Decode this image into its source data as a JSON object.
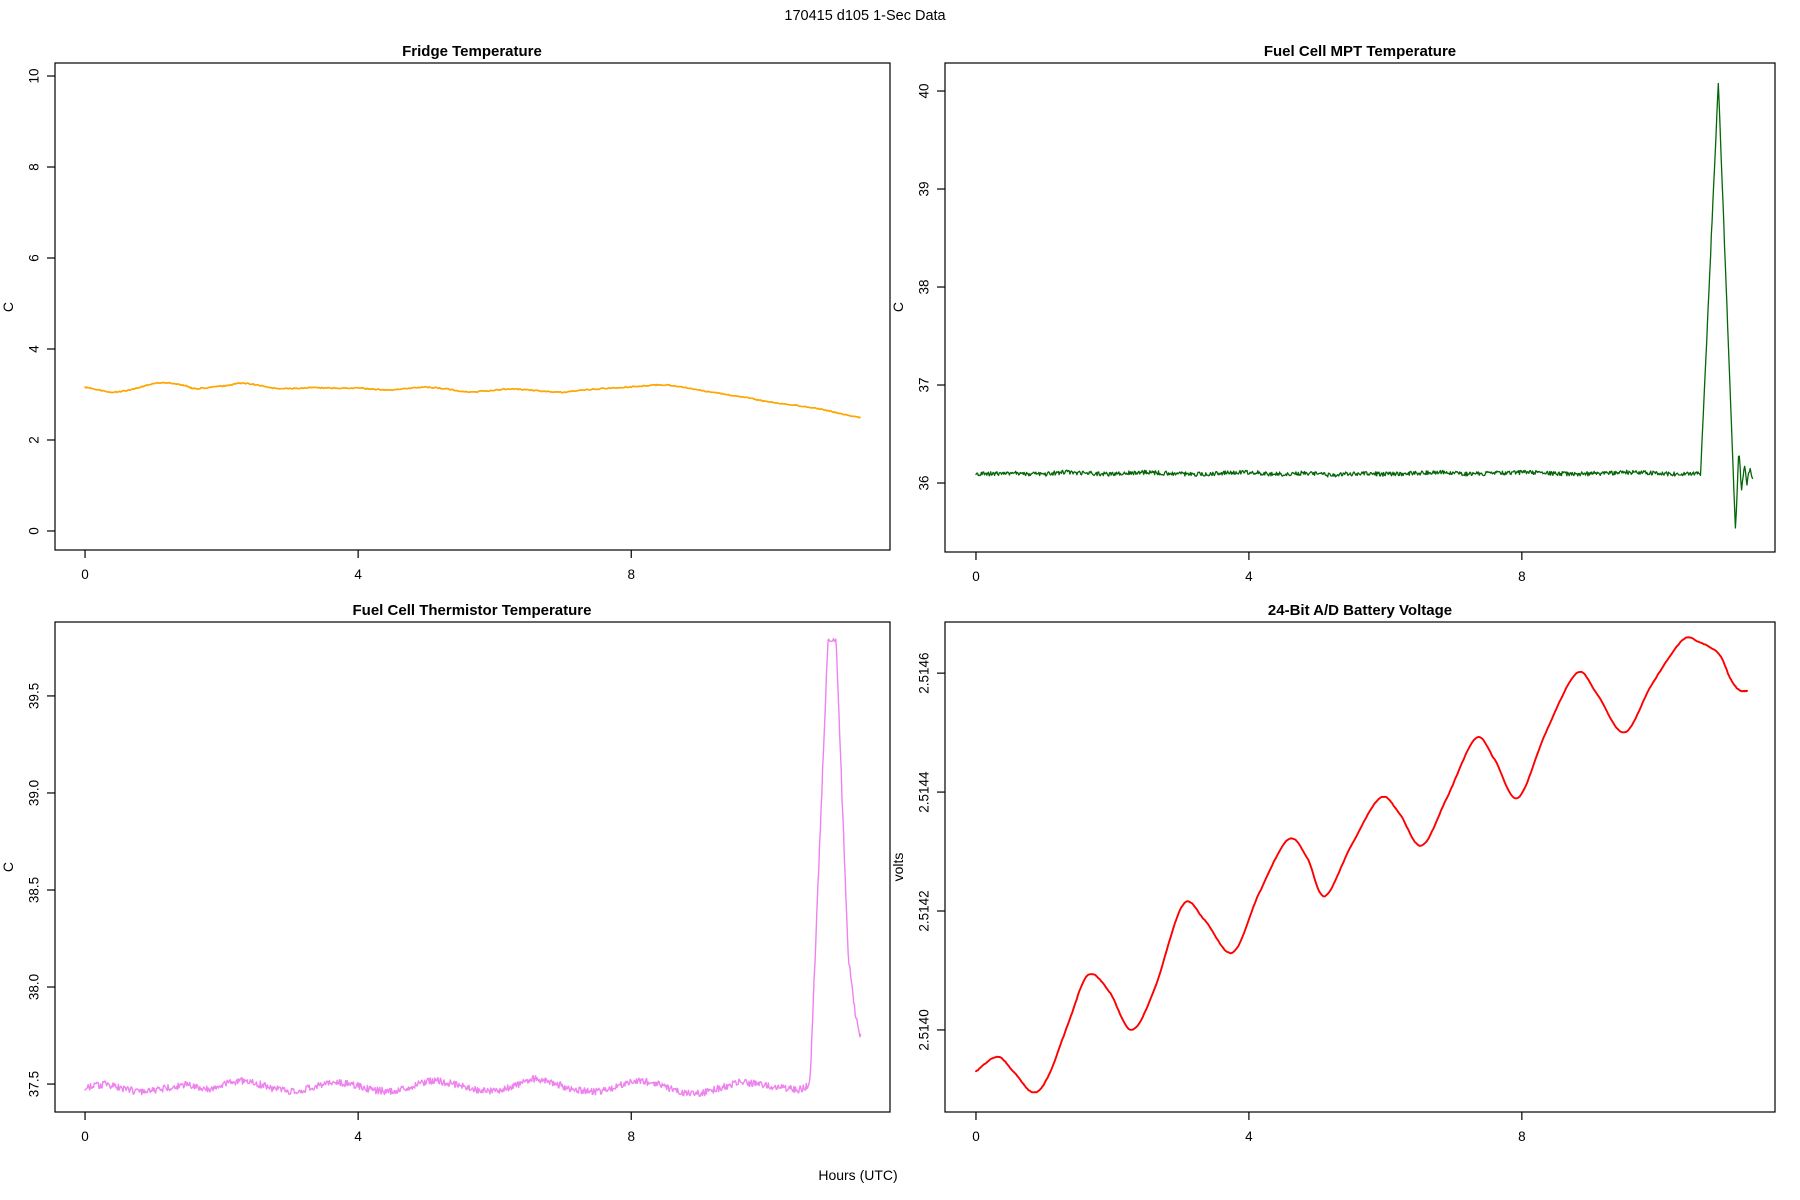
{
  "main_title": "170415   d105   1-Sec Data",
  "xlabel": "Hours (UTC)",
  "chart_data": [
    {
      "id": "fridge-temperature",
      "type": "line",
      "title": "Fridge Temperature",
      "ylabel": "C",
      "color": "#FFA500",
      "xlim": [
        -0.44,
        11.79
      ],
      "ylim": [
        -0.418,
        10.286
      ],
      "xticks": [
        {
          "v": 0,
          "label": "0"
        },
        {
          "v": 4,
          "label": "4"
        },
        {
          "v": 8,
          "label": "8"
        }
      ],
      "yticks": [
        {
          "v": 0,
          "label": "0"
        },
        {
          "v": 2,
          "label": "2"
        },
        {
          "v": 4,
          "label": "4"
        },
        {
          "v": 6,
          "label": "6"
        },
        {
          "v": 8,
          "label": "8"
        },
        {
          "v": 10,
          "label": "10"
        }
      ],
      "interpolation": "smooth",
      "noise_amplitude": 0.012,
      "points": [
        [
          0,
          3.16
        ],
        [
          0.2,
          3.1
        ],
        [
          0.4,
          3.05
        ],
        [
          0.65,
          3.1
        ],
        [
          0.9,
          3.2
        ],
        [
          1.15,
          3.26
        ],
        [
          1.45,
          3.2
        ],
        [
          1.6,
          3.13
        ],
        [
          1.85,
          3.16
        ],
        [
          2.1,
          3.2
        ],
        [
          2.3,
          3.25
        ],
        [
          2.55,
          3.2
        ],
        [
          2.75,
          3.14
        ],
        [
          3.0,
          3.13
        ],
        [
          3.3,
          3.15
        ],
        [
          3.6,
          3.14
        ],
        [
          3.95,
          3.14
        ],
        [
          4.2,
          3.12
        ],
        [
          4.45,
          3.1
        ],
        [
          4.7,
          3.13
        ],
        [
          5.0,
          3.16
        ],
        [
          5.3,
          3.12
        ],
        [
          5.6,
          3.06
        ],
        [
          5.9,
          3.08
        ],
        [
          6.2,
          3.12
        ],
        [
          6.5,
          3.1
        ],
        [
          6.8,
          3.06
        ],
        [
          7.0,
          3.05
        ],
        [
          7.3,
          3.1
        ],
        [
          7.7,
          3.14
        ],
        [
          8.0,
          3.17
        ],
        [
          8.3,
          3.2
        ],
        [
          8.5,
          3.21
        ],
        [
          8.8,
          3.15
        ],
        [
          9.1,
          3.07
        ],
        [
          9.4,
          3.0
        ],
        [
          9.7,
          2.93
        ],
        [
          9.9,
          2.87
        ],
        [
          10.2,
          2.8
        ],
        [
          10.6,
          2.72
        ],
        [
          10.9,
          2.64
        ],
        [
          11.1,
          2.57
        ],
        [
          11.35,
          2.49
        ]
      ]
    },
    {
      "id": "fuel-cell-mpt-temperature",
      "type": "line",
      "title": "Fuel Cell MPT Temperature",
      "ylabel": "C",
      "color": "#056608",
      "xlim": [
        -0.454,
        11.71
      ],
      "ylim": [
        35.296,
        40.286
      ],
      "xticks": [
        {
          "v": 0,
          "label": "0"
        },
        {
          "v": 4,
          "label": "4"
        },
        {
          "v": 8,
          "label": "8"
        }
      ],
      "yticks": [
        {
          "v": 36,
          "label": "36"
        },
        {
          "v": 37,
          "label": "37"
        },
        {
          "v": 38,
          "label": "38"
        },
        {
          "v": 39,
          "label": "39"
        },
        {
          "v": 40,
          "label": "40"
        }
      ],
      "interpolation": "linear",
      "noise_amplitude": 0.022,
      "points": [
        [
          0,
          36.09
        ],
        [
          0.5,
          36.1
        ],
        [
          1,
          36.09
        ],
        [
          1.3,
          36.11
        ],
        [
          1.6,
          36.1
        ],
        [
          2,
          36.09
        ],
        [
          2.4,
          36.11
        ],
        [
          2.8,
          36.1
        ],
        [
          3.2,
          36.09
        ],
        [
          3.6,
          36.1
        ],
        [
          4,
          36.11
        ],
        [
          4.4,
          36.09
        ],
        [
          4.8,
          36.1
        ],
        [
          5.2,
          36.08
        ],
        [
          5.6,
          36.1
        ],
        [
          6,
          36.09
        ],
        [
          6.4,
          36.1
        ],
        [
          6.8,
          36.11
        ],
        [
          7.2,
          36.09
        ],
        [
          7.6,
          36.1
        ],
        [
          8,
          36.11
        ],
        [
          8.4,
          36.1
        ],
        [
          8.8,
          36.09
        ],
        [
          9.2,
          36.1
        ],
        [
          9.6,
          36.11
        ],
        [
          10,
          36.1
        ],
        [
          10.3,
          36.09
        ],
        [
          10.55,
          36.1
        ],
        [
          10.62,
          36.1
        ],
        [
          10.88,
          40.09
        ],
        [
          11.13,
          35.52
        ],
        [
          11.18,
          36.34
        ],
        [
          11.22,
          35.93
        ],
        [
          11.26,
          36.18
        ],
        [
          11.3,
          36.0
        ],
        [
          11.34,
          36.14
        ],
        [
          11.38,
          36.05
        ]
      ]
    },
    {
      "id": "fuel-cell-thermistor-temperature",
      "type": "line",
      "title": "Fuel Cell Thermistor Temperature",
      "ylabel": "C",
      "color": "#EE82EE",
      "xlim": [
        -0.44,
        11.79
      ],
      "ylim": [
        37.356,
        39.881
      ],
      "xticks": [
        {
          "v": 0,
          "label": "0"
        },
        {
          "v": 4,
          "label": "4"
        },
        {
          "v": 8,
          "label": "8"
        }
      ],
      "yticks": [
        {
          "v": 37.5,
          "label": "37.5"
        },
        {
          "v": 38.0,
          "label": "38.0"
        },
        {
          "v": 38.5,
          "label": "38.5"
        },
        {
          "v": 39.0,
          "label": "39.0"
        },
        {
          "v": 39.5,
          "label": "39.5"
        }
      ],
      "interpolation": "linear",
      "noise_amplitude": 0.018,
      "points": [
        [
          0,
          37.48
        ],
        [
          0.3,
          37.5
        ],
        [
          0.6,
          37.47
        ],
        [
          0.9,
          37.46
        ],
        [
          1.2,
          37.48
        ],
        [
          1.5,
          37.5
        ],
        [
          1.8,
          37.47
        ],
        [
          2.1,
          37.51
        ],
        [
          2.4,
          37.52
        ],
        [
          2.7,
          37.48
        ],
        [
          3.0,
          37.46
        ],
        [
          3.3,
          37.48
        ],
        [
          3.6,
          37.51
        ],
        [
          3.9,
          37.5
        ],
        [
          4.2,
          37.47
        ],
        [
          4.5,
          37.46
        ],
        [
          4.8,
          37.49
        ],
        [
          5.1,
          37.52
        ],
        [
          5.4,
          37.5
        ],
        [
          5.7,
          37.47
        ],
        [
          6.0,
          37.46
        ],
        [
          6.3,
          37.49
        ],
        [
          6.6,
          37.53
        ],
        [
          6.9,
          37.5
        ],
        [
          7.2,
          37.47
        ],
        [
          7.5,
          37.46
        ],
        [
          7.8,
          37.49
        ],
        [
          8.1,
          37.52
        ],
        [
          8.4,
          37.5
        ],
        [
          8.7,
          37.46
        ],
        [
          9.0,
          37.45
        ],
        [
          9.3,
          37.48
        ],
        [
          9.6,
          37.51
        ],
        [
          9.9,
          37.5
        ],
        [
          10.2,
          37.48
        ],
        [
          10.45,
          37.47
        ],
        [
          10.58,
          37.49
        ],
        [
          10.62,
          37.52
        ],
        [
          10.88,
          39.78
        ],
        [
          11.0,
          39.79
        ],
        [
          11.17,
          38.22
        ],
        [
          11.19,
          38.12
        ],
        [
          11.22,
          38.05
        ],
        [
          11.28,
          37.86
        ],
        [
          11.36,
          37.74
        ]
      ]
    },
    {
      "id": "battery-voltage",
      "type": "line",
      "title": "24-Bit A/D Battery Voltage",
      "ylabel": "volts",
      "color": "#FF0000",
      "xlim": [
        -0.454,
        11.71
      ],
      "ylim": [
        2.513862,
        2.514686
      ],
      "xticks": [
        {
          "v": 0,
          "label": "0"
        },
        {
          "v": 4,
          "label": "4"
        },
        {
          "v": 8,
          "label": "8"
        }
      ],
      "yticks": [
        {
          "v": 2.514,
          "label": "2.5140"
        },
        {
          "v": 2.5142,
          "label": "2.5142"
        },
        {
          "v": 2.5144,
          "label": "2.5144"
        },
        {
          "v": 2.5146,
          "label": "2.5146"
        }
      ],
      "interpolation": "smooth",
      "noise_amplitude": 6e-07,
      "points": [
        [
          0,
          2.51393
        ],
        [
          0.31,
          2.513955
        ],
        [
          0.55,
          2.51393
        ],
        [
          0.83,
          2.513895
        ],
        [
          1.05,
          2.51392
        ],
        [
          1.35,
          2.51401
        ],
        [
          1.64,
          2.514092
        ],
        [
          1.95,
          2.514065
        ],
        [
          2.28,
          2.514
        ],
        [
          2.62,
          2.51407
        ],
        [
          3.03,
          2.51421
        ],
        [
          3.35,
          2.514185
        ],
        [
          3.76,
          2.51413
        ],
        [
          4.15,
          2.51423
        ],
        [
          4.57,
          2.51432
        ],
        [
          4.85,
          2.51429
        ],
        [
          5.11,
          2.514225
        ],
        [
          5.5,
          2.51431
        ],
        [
          5.92,
          2.51439
        ],
        [
          6.2,
          2.514365
        ],
        [
          6.53,
          2.51431
        ],
        [
          6.9,
          2.51439
        ],
        [
          7.32,
          2.51449
        ],
        [
          7.6,
          2.514455
        ],
        [
          7.94,
          2.51439
        ],
        [
          8.35,
          2.5145
        ],
        [
          8.8,
          2.5146
        ],
        [
          9.1,
          2.514565
        ],
        [
          9.5,
          2.5145
        ],
        [
          9.9,
          2.51458
        ],
        [
          10.35,
          2.514655
        ],
        [
          10.6,
          2.514652
        ],
        [
          10.89,
          2.514632
        ],
        [
          11.05,
          2.514592
        ],
        [
          11.18,
          2.514572
        ],
        [
          11.3,
          2.51457
        ]
      ]
    }
  ]
}
